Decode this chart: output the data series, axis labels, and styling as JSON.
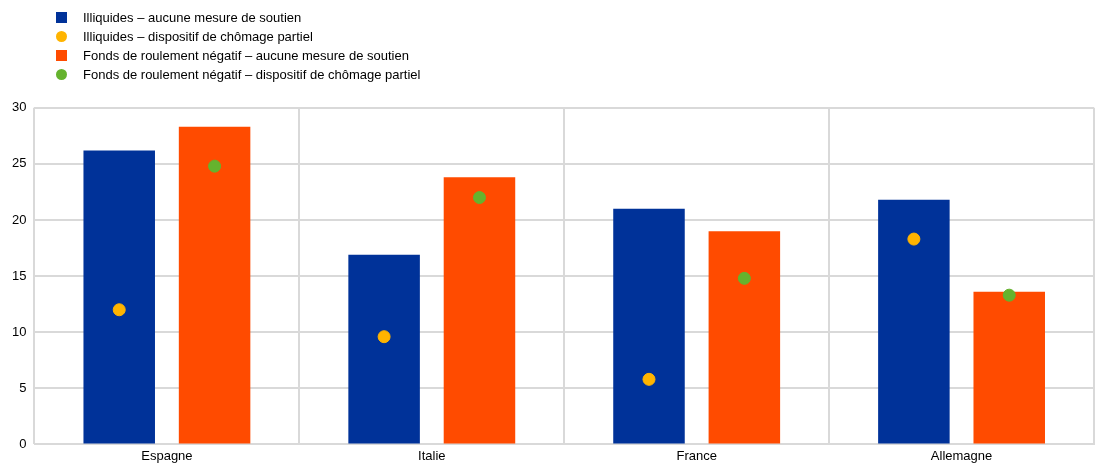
{
  "chart_data": {
    "type": "bar",
    "categories": [
      "Espagne",
      "Italie",
      "France",
      "Allemagne"
    ],
    "series": [
      {
        "name": "Illiquides – aucune mesure de soutien",
        "color": "#003299",
        "values": [
          26.2,
          16.9,
          21.0,
          21.8
        ]
      },
      {
        "name": "Illiquides – dispositif de chômage partiel",
        "type": "scatter",
        "color": "#ffb400",
        "x": [
          "Espagne",
          "Italie",
          "France",
          "Allemagne"
        ],
        "values": [
          12.0,
          9.6,
          5.8,
          18.3
        ]
      },
      {
        "name": "Fonds de roulement négatif – aucune mesure de soutien",
        "color": "#ff4b00",
        "values": [
          28.3,
          23.8,
          19.0,
          13.6
        ]
      },
      {
        "name": "Fonds de roulement négatif – dispositif de chômage partiel",
        "type": "scatter",
        "color": "#65b32e",
        "x": [
          "Espagne",
          "Italie",
          "France",
          "Allemagne"
        ],
        "values": [
          24.8,
          22.0,
          14.8,
          13.3
        ]
      }
    ],
    "ylim": [
      0,
      30
    ],
    "yticks": [
      0,
      5,
      10,
      15,
      20,
      25,
      30
    ],
    "grid": true,
    "legend": "top left",
    "marker": "circle"
  }
}
